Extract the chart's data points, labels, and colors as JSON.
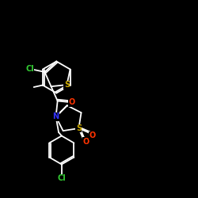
{
  "bg_color": "#000000",
  "bond_color": "#ffffff",
  "atom_colors": {
    "N": "#3333ff",
    "O": "#ff3300",
    "S": "#ccaa00",
    "Cl": "#33cc33"
  },
  "figsize": [
    2.5,
    2.5
  ],
  "dpi": 100,
  "xlim": [
    0,
    10
  ],
  "ylim": [
    0,
    10
  ]
}
